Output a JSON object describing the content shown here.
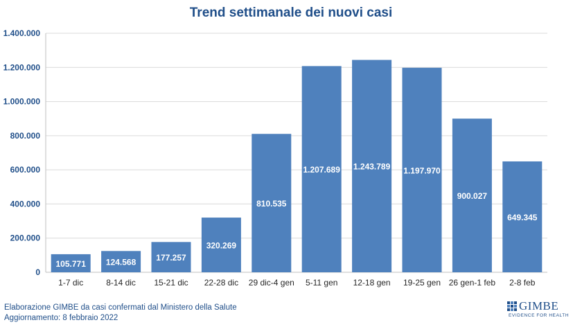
{
  "chart_data": {
    "type": "bar",
    "title": "Trend settimanale dei nuovi casi",
    "categories": [
      "1-7 dic",
      "8-14 dic",
      "15-21 dic",
      "22-28 dic",
      "29 dic-4 gen",
      "5-11 gen",
      "12-18 gen",
      "19-25 gen",
      "26 gen-1 feb",
      "2-8 feb"
    ],
    "values": [
      105771,
      124568,
      177257,
      320269,
      810535,
      1207689,
      1243789,
      1197970,
      900027,
      649345
    ],
    "data_labels": [
      "105.771",
      "124.568",
      "177.257",
      "320.269",
      "810.535",
      "1.207.689",
      "1.243.789",
      "1.197.970",
      "900.027",
      "649.345"
    ],
    "ylim": [
      0,
      1400000
    ],
    "yticks": [
      0,
      200000,
      400000,
      600000,
      800000,
      1000000,
      1200000,
      1400000
    ],
    "ytick_labels": [
      "0",
      "200.000",
      "400.000",
      "600.000",
      "800.000",
      "1.000.000",
      "1.200.000",
      "1.400.000"
    ],
    "grid": true,
    "colors": {
      "bar": "#4f81bd",
      "title": "#1f4e89",
      "axis_text": "#1f4e89",
      "grid": "#d9d9d9"
    }
  },
  "footer": {
    "line1": "Elaborazione GIMBE da casi confermati dal Ministero della Salute",
    "line2": "Aggiornamento: 8 febbraio 2022"
  },
  "logo": {
    "name": "GIMBE",
    "tagline": "EVIDENCE FOR HEALTH"
  }
}
